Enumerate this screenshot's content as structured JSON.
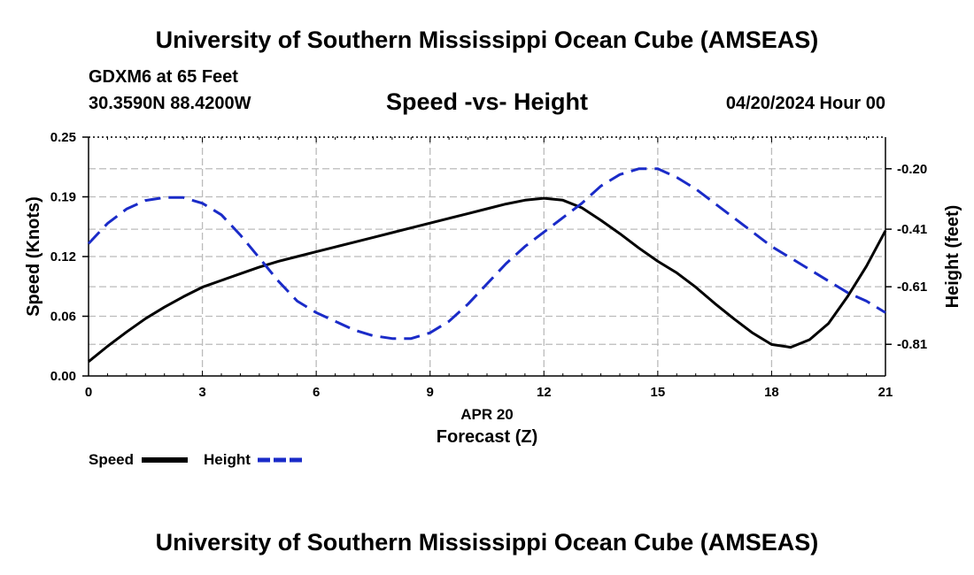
{
  "header": {
    "title": "University of Southern Mississippi Ocean Cube (AMSEAS)",
    "station": "GDXM6 at 65 Feet",
    "coords": "30.3590N  88.4200W",
    "subtitle": "Speed -vs- Height",
    "datetime": "04/20/2024 Hour 00"
  },
  "footer": {
    "title": "University of Southern Mississippi Ocean Cube (AMSEAS)"
  },
  "chart_data": {
    "type": "line",
    "x": [
      0,
      0.5,
      1,
      1.5,
      2,
      2.5,
      3,
      3.5,
      4,
      4.5,
      5,
      5.5,
      6,
      6.5,
      7,
      7.5,
      8,
      8.5,
      9,
      9.5,
      10,
      10.5,
      11,
      11.5,
      12,
      12.5,
      13,
      13.5,
      14,
      14.5,
      15,
      15.5,
      16,
      16.5,
      17,
      17.5,
      18,
      18.5,
      19,
      19.5,
      20,
      20.5,
      21
    ],
    "series": [
      {
        "name": "Speed",
        "axis": "left",
        "color": "#000000",
        "dash": "solid",
        "values": [
          0.015,
          0.031,
          0.046,
          0.06,
          0.072,
          0.083,
          0.093,
          0.1,
          0.107,
          0.114,
          0.12,
          0.125,
          0.13,
          0.135,
          0.14,
          0.145,
          0.15,
          0.155,
          0.16,
          0.165,
          0.17,
          0.175,
          0.18,
          0.184,
          0.186,
          0.184,
          0.176,
          0.163,
          0.149,
          0.134,
          0.12,
          0.108,
          0.093,
          0.076,
          0.06,
          0.045,
          0.033,
          0.03,
          0.038,
          0.055,
          0.083,
          0.115,
          0.152
        ]
      },
      {
        "name": "Height",
        "axis": "right",
        "color": "#1a2bc8",
        "dash": "dashed",
        "values": [
          -0.46,
          -0.39,
          -0.34,
          -0.31,
          -0.3,
          -0.3,
          -0.32,
          -0.36,
          -0.43,
          -0.51,
          -0.59,
          -0.66,
          -0.7,
          -0.73,
          -0.76,
          -0.78,
          -0.79,
          -0.79,
          -0.77,
          -0.73,
          -0.67,
          -0.6,
          -0.53,
          -0.47,
          -0.42,
          -0.37,
          -0.32,
          -0.26,
          -0.22,
          -0.2,
          -0.2,
          -0.23,
          -0.27,
          -0.32,
          -0.37,
          -0.42,
          -0.47,
          -0.51,
          -0.55,
          -0.59,
          -0.63,
          -0.66,
          -0.7
        ]
      }
    ],
    "xticks": [
      0,
      3,
      6,
      9,
      12,
      15,
      18,
      21
    ],
    "xlim": [
      0,
      21
    ],
    "yticks_left": [
      "0.00",
      "0.06",
      "0.12",
      "0.19",
      "0.25"
    ],
    "yticks_left_values": [
      0.0,
      0.0625,
      0.125,
      0.1875,
      0.25
    ],
    "ylim_left": [
      0,
      0.25
    ],
    "yticks_right": [
      "-0.20",
      "-0.41",
      "-0.61",
      "-0.81"
    ],
    "yticks_right_values": [
      -0.2,
      -0.41,
      -0.61,
      -0.81
    ],
    "ylim_right": [
      -0.92,
      -0.09
    ],
    "xlabel_date": "APR 20",
    "xlabel": "Forecast (Z)",
    "ylabel_left": "Speed (Knots)",
    "ylabel_right": "Height (feet)",
    "legend": [
      {
        "label": "Speed",
        "color": "#000000",
        "dash": "solid"
      },
      {
        "label": "Height",
        "color": "#1a2bc8",
        "dash": "dashed"
      }
    ],
    "grid": true
  }
}
